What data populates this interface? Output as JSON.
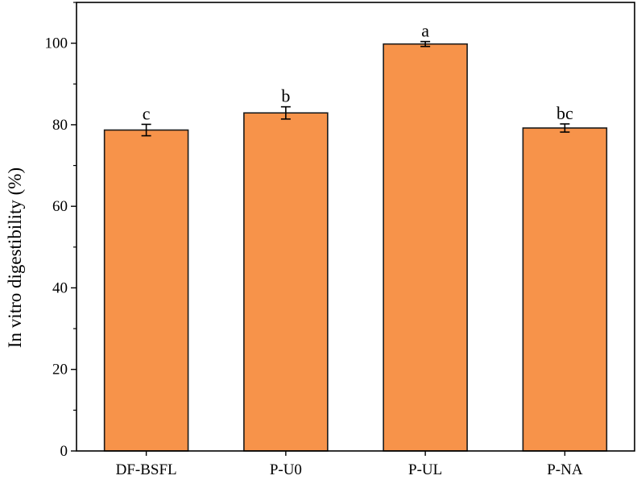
{
  "chart_data": {
    "type": "bar",
    "title": "",
    "xlabel": "",
    "ylabel": "In vitro digestibility (%)",
    "categories": [
      "DF-BSFL",
      "P-U0",
      "P-UL",
      "P-NA"
    ],
    "values": [
      78.7,
      82.9,
      99.8,
      79.2
    ],
    "errors": [
      1.4,
      1.5,
      0.6,
      1.0
    ],
    "significance_labels": [
      "c",
      "b",
      "a",
      "bc"
    ],
    "ylim": [
      0,
      110
    ],
    "yticks": [
      0,
      20,
      40,
      60,
      80,
      100
    ],
    "ytick_labels": [
      "0",
      "20",
      "40",
      "60",
      "80",
      "100"
    ],
    "grid": false,
    "legend": "none",
    "colors": {
      "bar_fill": "#F7934A",
      "bar_edge": "#1a1a1a",
      "axis": "#000000"
    }
  }
}
